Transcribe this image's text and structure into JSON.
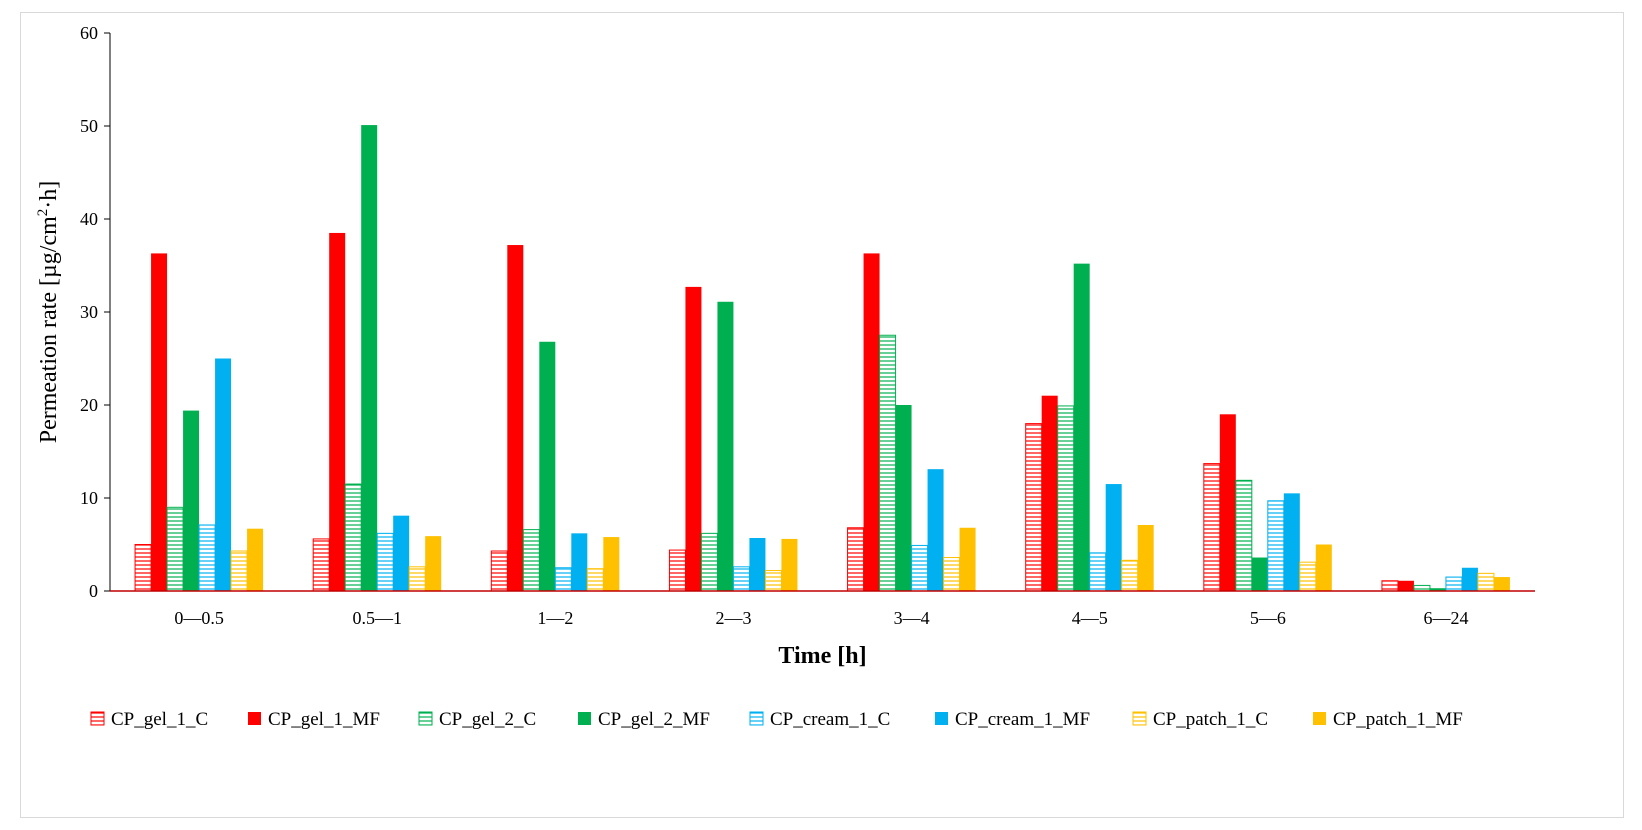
{
  "chart_data": {
    "type": "bar",
    "title": "",
    "xlabel": "Time [h]",
    "ylabel_parts": {
      "pre": "Permeation rate [µg/cm",
      "sup": "2",
      "post": "·h]"
    },
    "ylim": [
      0,
      60
    ],
    "yticks": [
      "0",
      "10",
      "20",
      "30",
      "40",
      "50",
      "60"
    ],
    "grid": false,
    "legend_position": "bottom",
    "categories": [
      "0—0.5",
      "0.5—1",
      "1—2",
      "2—3",
      "3—4",
      "4—5",
      "5—6",
      "6—24"
    ],
    "series": [
      {
        "name": "CP_gel_1_C",
        "color": "#ff0000",
        "fill": "hatch",
        "values": [
          5.0,
          5.6,
          4.3,
          4.4,
          6.8,
          18.0,
          13.7,
          1.1
        ]
      },
      {
        "name": "CP_gel_1_MF",
        "color": "#ff0000",
        "fill": "solid",
        "values": [
          36.3,
          38.5,
          37.2,
          32.7,
          36.3,
          21.0,
          19.0,
          1.1
        ]
      },
      {
        "name": "CP_gel_2_C",
        "color": "#00b050",
        "fill": "hatch",
        "values": [
          9.0,
          11.5,
          6.6,
          6.2,
          27.5,
          19.9,
          11.9,
          0.6
        ]
      },
      {
        "name": "CP_gel_2_MF",
        "color": "#00b050",
        "fill": "solid",
        "values": [
          19.4,
          50.1,
          26.8,
          31.1,
          20.0,
          35.2,
          3.6,
          0.3
        ]
      },
      {
        "name": "CP_cream_1_C",
        "color": "#00b0f0",
        "fill": "hatch",
        "values": [
          7.1,
          6.2,
          2.5,
          2.6,
          4.9,
          4.1,
          9.7,
          1.5
        ]
      },
      {
        "name": "CP_cream_1_MF",
        "color": "#00b0f0",
        "fill": "solid",
        "values": [
          25.0,
          8.1,
          6.2,
          5.7,
          13.1,
          11.5,
          10.5,
          2.5
        ]
      },
      {
        "name": "CP_patch_1_C",
        "color": "#ffc000",
        "fill": "hatch",
        "values": [
          4.3,
          2.6,
          2.4,
          2.2,
          3.6,
          3.3,
          3.1,
          1.9
        ]
      },
      {
        "name": "CP_patch_1_MF",
        "color": "#ffc000",
        "fill": "solid",
        "values": [
          6.7,
          5.9,
          5.8,
          5.6,
          6.8,
          7.1,
          5.0,
          1.5
        ]
      }
    ]
  }
}
